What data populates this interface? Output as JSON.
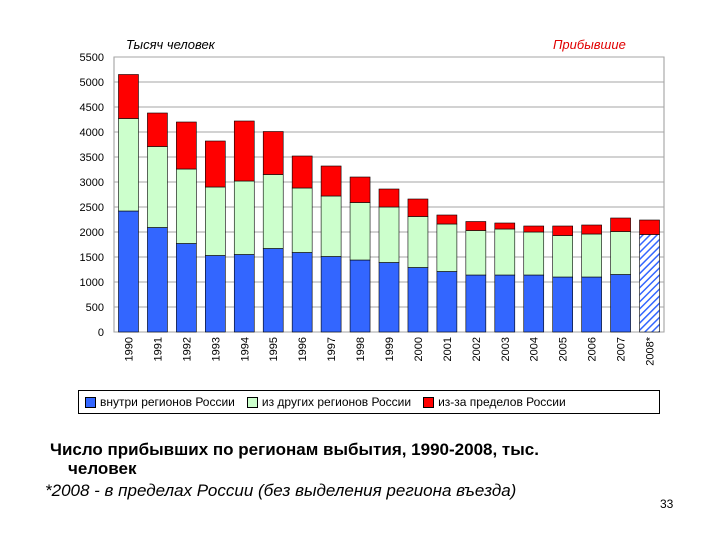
{
  "chart_data": {
    "type": "bar",
    "stacked": true,
    "y_unit_label": "Тысяч человек",
    "corner_label": "Прибывшие",
    "categories": [
      "1990",
      "1991",
      "1992",
      "1993",
      "1994",
      "1995",
      "1996",
      "1997",
      "1998",
      "1999",
      "2000",
      "2001",
      "2002",
      "2003",
      "2004",
      "2005",
      "2006",
      "2007",
      "2008*"
    ],
    "series": [
      {
        "name": "внутри регионов России",
        "color": "#3366ff",
        "values": [
          2420,
          2090,
          1770,
          1530,
          1550,
          1670,
          1590,
          1510,
          1440,
          1390,
          1290,
          1210,
          1140,
          1140,
          1140,
          1100,
          1100,
          1150,
          1950
        ]
      },
      {
        "name": "из других регионов России",
        "color": "#ccffcc",
        "values": [
          1850,
          1620,
          1490,
          1370,
          1470,
          1480,
          1290,
          1210,
          1150,
          1110,
          1020,
          950,
          890,
          920,
          860,
          830,
          860,
          860,
          0
        ]
      },
      {
        "name": "из-за пределов России",
        "color": "#ff0000",
        "values": [
          880,
          670,
          940,
          920,
          1200,
          860,
          640,
          600,
          510,
          360,
          350,
          180,
          180,
          120,
          120,
          190,
          180,
          270,
          290
        ]
      }
    ],
    "ylim": [
      0,
      5500
    ],
    "yticks": [
      0,
      500,
      1000,
      1500,
      2000,
      2500,
      3000,
      3500,
      4000,
      4500,
      5000,
      5500
    ],
    "grid": true,
    "legend_position": "bottom",
    "hatched_bottom_category": "2008*"
  },
  "caption": {
    "line1": "Число прибывших по регионам выбытия, 1990-2008, тыс.",
    "line2": "человек"
  },
  "footnote": "*2008 - в пределах России (без выделения региона въезда)",
  "page_number": "33"
}
